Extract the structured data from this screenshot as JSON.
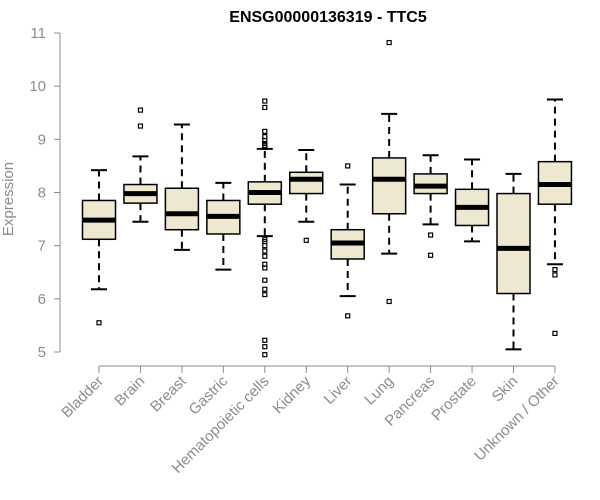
{
  "chart_data": {
    "type": "boxplot",
    "title": "ENSG00000136319 - TTC5",
    "xlabel": "",
    "ylabel": "Expression",
    "ylim": [
      4.75,
      11.1
    ],
    "yticks": [
      5,
      6,
      7,
      8,
      9,
      10,
      11
    ],
    "box_fill": "#efe8d0",
    "categories": [
      "Bladder",
      "Brain",
      "Breast",
      "Gastric",
      "Hematopoietic cells",
      "Kidney",
      "Liver",
      "Lung",
      "Pancreas",
      "Prostate",
      "Skin",
      "Unknown / Other"
    ],
    "boxes": [
      {
        "category": "Bladder",
        "whisker_low": 6.18,
        "q1": 7.12,
        "median": 7.48,
        "q3": 7.85,
        "whisker_high": 8.42,
        "outliers": [
          5.55
        ]
      },
      {
        "category": "Brain",
        "whisker_low": 7.45,
        "q1": 7.8,
        "median": 7.98,
        "q3": 8.15,
        "whisker_high": 8.68,
        "outliers": [
          9.55,
          9.25
        ]
      },
      {
        "category": "Breast",
        "whisker_low": 6.92,
        "q1": 7.3,
        "median": 7.6,
        "q3": 8.08,
        "whisker_high": 9.28,
        "outliers": []
      },
      {
        "category": "Gastric",
        "whisker_low": 6.55,
        "q1": 7.22,
        "median": 7.55,
        "q3": 7.85,
        "whisker_high": 8.18,
        "outliers": []
      },
      {
        "category": "Hematopoietic cells",
        "whisker_low": 7.18,
        "q1": 7.78,
        "median": 8.0,
        "q3": 8.2,
        "whisker_high": 8.82,
        "outliers": [
          9.72,
          9.6,
          9.15,
          9.05,
          8.98,
          8.92,
          8.88,
          8.85,
          7.12,
          7.08,
          7.0,
          6.9,
          6.8,
          6.65,
          6.58,
          6.35,
          6.18,
          6.08,
          5.22,
          5.1,
          4.95
        ]
      },
      {
        "category": "Kidney",
        "whisker_low": 7.45,
        "q1": 7.98,
        "median": 8.25,
        "q3": 8.38,
        "whisker_high": 8.8,
        "outliers": [
          7.1
        ]
      },
      {
        "category": "Liver",
        "whisker_low": 6.05,
        "q1": 6.75,
        "median": 7.05,
        "q3": 7.3,
        "whisker_high": 8.15,
        "outliers": [
          8.5,
          5.68
        ]
      },
      {
        "category": "Lung",
        "whisker_low": 6.85,
        "q1": 7.6,
        "median": 8.25,
        "q3": 8.65,
        "whisker_high": 9.48,
        "outliers": [
          10.82,
          5.95
        ]
      },
      {
        "category": "Pancreas",
        "whisker_low": 7.4,
        "q1": 7.98,
        "median": 8.12,
        "q3": 8.35,
        "whisker_high": 8.7,
        "outliers": [
          7.2,
          6.82
        ]
      },
      {
        "category": "Prostate",
        "whisker_low": 7.08,
        "q1": 7.38,
        "median": 7.72,
        "q3": 8.06,
        "whisker_high": 8.62,
        "outliers": []
      },
      {
        "category": "Skin",
        "whisker_low": 5.05,
        "q1": 6.1,
        "median": 6.95,
        "q3": 7.98,
        "whisker_high": 8.35,
        "outliers": []
      },
      {
        "category": "Unknown / Other",
        "whisker_low": 6.65,
        "q1": 7.78,
        "median": 8.15,
        "q3": 8.58,
        "whisker_high": 9.75,
        "outliers": [
          6.55,
          6.45,
          5.35
        ]
      }
    ]
  }
}
